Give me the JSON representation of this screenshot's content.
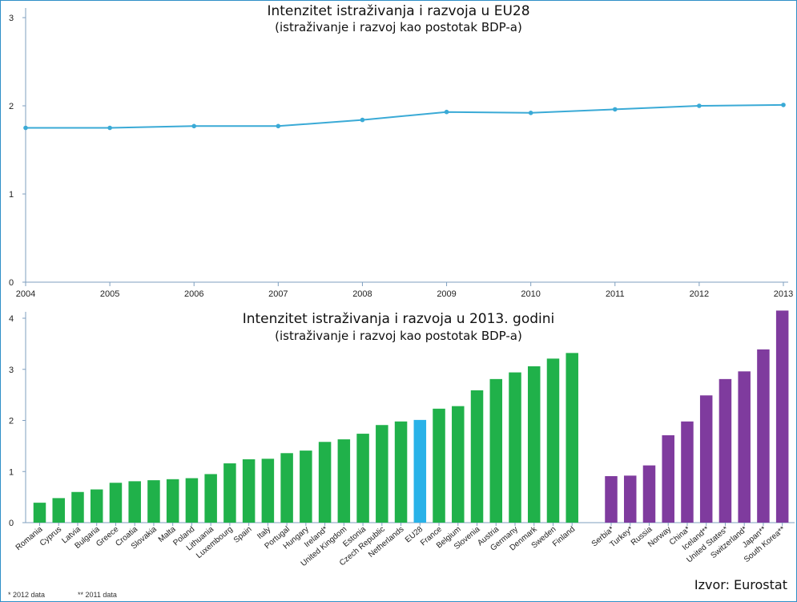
{
  "chart_data": [
    {
      "type": "line",
      "title": "Intenzitet istraživanja i razvoja u EU28",
      "subtitle": "(istraživanje i razvoj kao postotak BDP-a)",
      "x": [
        2004,
        2005,
        2006,
        2007,
        2008,
        2009,
        2010,
        2011,
        2012,
        2013
      ],
      "series": [
        {
          "values": [
            1.75,
            1.75,
            1.77,
            1.77,
            1.84,
            1.93,
            1.92,
            1.96,
            2.0,
            2.01
          ]
        }
      ],
      "ylim": [
        0,
        3
      ],
      "yticks": [
        0,
        1,
        2,
        3
      ],
      "grid": false,
      "colors": {
        "line": "#3aaad6",
        "axis": "#7f9fbf"
      }
    },
    {
      "type": "bar",
      "title": "Intenzitet istraživanja i razvoja u 2013. godini",
      "subtitle": "(istraživanje i razvoj kao postotak BDP-a)",
      "categories": [
        "Romania",
        "Cyprus",
        "Latvia",
        "Bulgaria",
        "Greece",
        "Croatia",
        "Slovakia",
        "Malta",
        "Poland",
        "Lithuania",
        "Luxembourg",
        "Spain",
        "Italy",
        "Portugal",
        "Hungary",
        "Ireland*",
        "United Kingdom",
        "Estonia",
        "Czech Republic",
        "Netherlands",
        "EU28",
        "France",
        "Belgium",
        "Slovenia",
        "Austria",
        "Germany",
        "Denmark",
        "Sweden",
        "Finland",
        "Serbia*",
        "Turkey*",
        "Russia",
        "Norway",
        "China*",
        "Iceland**",
        "United States*",
        "Switzerland*",
        "Japan**",
        "South Korea**"
      ],
      "values": [
        0.39,
        0.48,
        0.6,
        0.65,
        0.78,
        0.81,
        0.83,
        0.85,
        0.87,
        0.95,
        1.16,
        1.24,
        1.25,
        1.36,
        1.41,
        1.58,
        1.63,
        1.74,
        1.91,
        1.98,
        2.01,
        2.23,
        2.28,
        2.59,
        2.81,
        2.94,
        3.06,
        3.21,
        3.32,
        0.91,
        0.92,
        1.12,
        1.71,
        1.98,
        2.49,
        2.81,
        2.96,
        3.39,
        4.15
      ],
      "groups": [
        "eu",
        "eu",
        "eu",
        "eu",
        "eu",
        "eu",
        "eu",
        "eu",
        "eu",
        "eu",
        "eu",
        "eu",
        "eu",
        "eu",
        "eu",
        "eu",
        "eu",
        "eu",
        "eu",
        "eu",
        "eu28",
        "eu",
        "eu",
        "eu",
        "eu",
        "eu",
        "eu",
        "eu",
        "eu",
        "non-eu",
        "non-eu",
        "non-eu",
        "non-eu",
        "non-eu",
        "non-eu",
        "non-eu",
        "non-eu",
        "non-eu",
        "non-eu"
      ],
      "ylim": [
        0,
        4
      ],
      "yticks": [
        0,
        1,
        2,
        3,
        4
      ],
      "grid": false,
      "colors": {
        "eu": "#20b14a",
        "eu28": "#29b2e8",
        "non-eu": "#7f3b9e",
        "axis": "#7f9fbf"
      },
      "notes": [
        "* 2012 data",
        "** 2011 data"
      ]
    }
  ],
  "source": "Izvor: Eurostat"
}
